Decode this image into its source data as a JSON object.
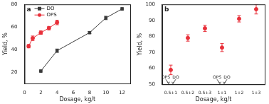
{
  "chart_data": [
    {
      "type": "line",
      "title": "a",
      "x_label": "Dosage, kg/t",
      "y_label": "Yield, %",
      "xlim": [
        0,
        13
      ],
      "xticks": [
        0,
        2,
        4,
        6,
        8,
        10,
        12
      ],
      "ylim": [
        10,
        80
      ],
      "yticks": [
        20,
        40,
        60,
        80
      ],
      "grid": false,
      "legend": "top-left",
      "series": [
        {
          "name": "DO",
          "color": "#3a3a3a",
          "marker": "square",
          "line_style": "solid",
          "x": [
            2,
            4,
            8,
            10,
            12
          ],
          "values": [
            21,
            39,
            55,
            68,
            76
          ],
          "errors": [
            1,
            1.5,
            1,
            1.5,
            1
          ]
        },
        {
          "name": "OPS",
          "color": "#e8303a",
          "marker": "circle",
          "line_style": "solid",
          "x": [
            0.5,
            1,
            2,
            3,
            4
          ],
          "values": [
            43,
            50,
            55,
            59,
            64
          ],
          "errors": [
            1.5,
            2,
            1.5,
            1.5,
            2
          ]
        }
      ]
    },
    {
      "type": "scatter",
      "title": "b",
      "x_label": "Dosage, kg/t",
      "y_label": "Yield, %",
      "categories": [
        "0.5+1",
        "0.5+2",
        "0.5+3",
        "1+1",
        "1+2",
        "1+3"
      ],
      "ylim": [
        50,
        100
      ],
      "yticks": [
        50,
        60,
        70,
        80,
        90,
        100
      ],
      "grid": false,
      "color": "#e8303a",
      "marker": "circle",
      "values": [
        59,
        79,
        85,
        73,
        91,
        97
      ],
      "errors": [
        3,
        2,
        2,
        2.5,
        2,
        3
      ],
      "annotations": [
        {
          "text": "OPS",
          "category": "0.5+1"
        },
        {
          "text": "DO",
          "category": "0.5+1"
        },
        {
          "text": "OPS",
          "category": "1+1"
        },
        {
          "text": "DO",
          "category": "1+1"
        }
      ]
    }
  ]
}
